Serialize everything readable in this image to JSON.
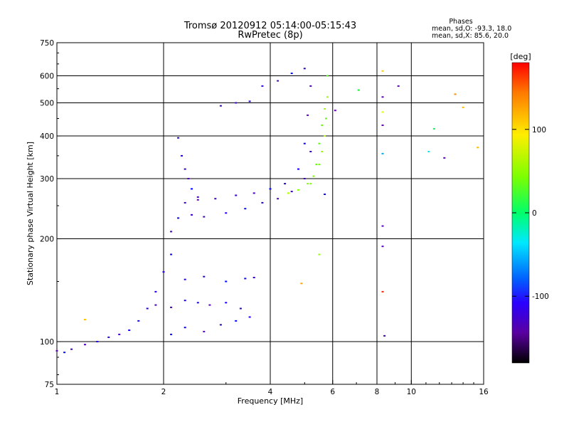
{
  "chart_data": {
    "type": "scatter",
    "title": "Tromsø 20120912 05:14:00-05:15:43",
    "subtitle": "RwPretec (8p)",
    "xlabel": "Frequency [MHz]",
    "ylabel": "Stationary phase Virtual Height [km]",
    "xscale": "log",
    "yscale": "log",
    "xlim": [
      1,
      16
    ],
    "ylim": [
      75,
      750
    ],
    "xticks": [
      {
        "value": 1,
        "label": "1"
      },
      {
        "value": 2,
        "label": "2"
      },
      {
        "value": 4,
        "label": "4"
      },
      {
        "value": 6,
        "label": "6"
      },
      {
        "value": 8,
        "label": "8"
      },
      {
        "value": 10,
        "label": "10"
      },
      {
        "value": 16,
        "label": "16"
      }
    ],
    "yticks": [
      {
        "value": 75,
        "label": "75"
      },
      {
        "value": 100,
        "label": "100"
      },
      {
        "value": 200,
        "label": "200"
      },
      {
        "value": 300,
        "label": "300"
      },
      {
        "value": 400,
        "label": "400"
      },
      {
        "value": 500,
        "label": "500"
      },
      {
        "value": 600,
        "label": "600"
      },
      {
        "value": 750,
        "label": "750"
      }
    ],
    "grid": true,
    "grid_x": [
      2,
      4,
      6,
      8,
      10
    ],
    "grid_y": [
      100,
      200,
      300,
      400,
      500,
      600
    ],
    "info": {
      "heading": "Phases",
      "line1": "mean, sd,O: -93.3, 18.0",
      "line2": "mean, sd,X:  85.6, 20.0"
    },
    "colorbar": {
      "label": "[deg]",
      "range": [
        -180,
        180
      ],
      "ticks": [
        {
          "value": 100,
          "label": "100"
        },
        {
          "value": 0,
          "label": "0"
        },
        {
          "value": -100,
          "label": "-100"
        }
      ]
    },
    "series": [
      {
        "mode": "O",
        "phase_mean": -93.3,
        "phase_sd": 18.0,
        "traces": [
          {
            "x": [
              1.0,
              1.05,
              1.1,
              1.2,
              1.3,
              1.4,
              1.5,
              1.6,
              1.7,
              1.8,
              1.9,
              2.0,
              2.1
            ],
            "y": [
              94,
              93,
              95,
              98,
              100,
              103,
              105,
              108,
              115,
              125,
              140,
              160,
              180
            ]
          },
          {
            "x": [
              1.9,
              2.1,
              2.3,
              2.5,
              2.7,
              3.0,
              3.3
            ],
            "y": [
              128,
              126,
              132,
              130,
              128,
              130,
              125
            ]
          },
          {
            "x": [
              2.1,
              2.3,
              2.6,
              2.9,
              3.2,
              3.5
            ],
            "y": [
              105,
              110,
              107,
              112,
              115,
              118
            ]
          },
          {
            "x": [
              2.3,
              2.6,
              3.0,
              3.4,
              3.6
            ],
            "y": [
              152,
              155,
              150,
              153,
              154
            ]
          },
          {
            "x": [
              2.1,
              2.2,
              2.3,
              2.5,
              2.8,
              3.2,
              3.6,
              4.0,
              4.4,
              4.8,
              5.0,
              5.1,
              5.2
            ],
            "y": [
              210,
              230,
              255,
              265,
              262,
              268,
              272,
              280,
              290,
              320,
              380,
              460,
              560
            ]
          },
          {
            "x": [
              2.2,
              2.25,
              2.3,
              2.35,
              2.4,
              2.5
            ],
            "y": [
              395,
              350,
              320,
              300,
              280,
              260
            ]
          },
          {
            "x": [
              2.4,
              2.6,
              3.0,
              3.4,
              3.8,
              4.2,
              4.6,
              5.0,
              5.2
            ],
            "y": [
              235,
              232,
              238,
              245,
              255,
              262,
              275,
              300,
              360
            ]
          },
          {
            "x": [
              2.9,
              3.2,
              3.5
            ],
            "y": [
              490,
              500,
              505
            ]
          },
          {
            "x": [
              3.8,
              4.2,
              4.6,
              5.0
            ],
            "y": [
              560,
              580,
              610,
              630
            ]
          }
        ]
      },
      {
        "mode": "X",
        "phase_mean": 85.6,
        "phase_sd": 20.0,
        "traces": [
          {
            "x": [
              4.5,
              4.8,
              5.1,
              5.3,
              5.5,
              5.6,
              5.7,
              5.75,
              5.8,
              5.8
            ],
            "y": [
              272,
              278,
              290,
              305,
              330,
              360,
              400,
              450,
              520,
              600
            ]
          },
          {
            "x": [
              5.2,
              5.4,
              5.5,
              5.6,
              5.7
            ],
            "y": [
              290,
              330,
              380,
              430,
              480
            ]
          }
        ]
      },
      {
        "mode": "scattered",
        "traces": [
          {
            "x": [
              8.3,
              8.3,
              8.3,
              8.3,
              8.3,
              8.3,
              8.3,
              8.3,
              8.4
            ],
            "y": [
              620,
              520,
              470,
              430,
              355,
              218,
              190,
              140,
              104
            ]
          },
          {
            "x": [
              7.1,
              9.2,
              11.2,
              11.6,
              12.4,
              13.3,
              14.0,
              15.4
            ],
            "y": [
              545,
              560,
              360,
              420,
              345,
              530,
              485,
              370
            ]
          },
          {
            "x": [
              1.2,
              4.9,
              5.5,
              5.7,
              6.1
            ],
            "y": [
              116,
              148,
              180,
              270,
              475
            ]
          }
        ]
      }
    ]
  }
}
